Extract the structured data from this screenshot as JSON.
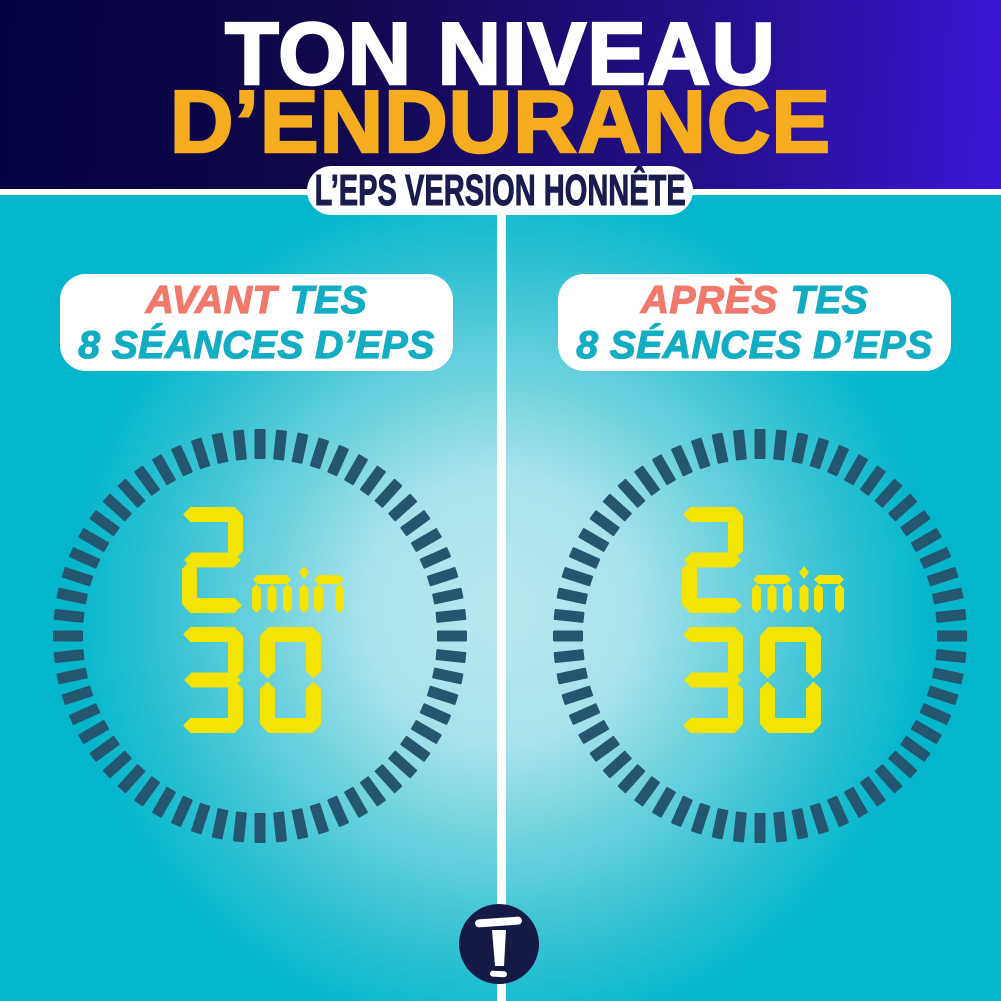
{
  "header": {
    "title_line1": "TON NIVEAU",
    "title_line2": "D’ENDURANCE",
    "pill": "L’EPS VERSION HONNÊTE"
  },
  "panels": [
    {
      "name": "avant",
      "accent": "AVANT",
      "rest": "TES",
      "line2": "8 SÉANCES D’EPS",
      "timer": {
        "minutes": "2",
        "unit": "min",
        "seconds": "30"
      }
    },
    {
      "name": "apres",
      "accent": "APRÈS",
      "rest": "TES",
      "line2": "8 SÉANCES D’EPS",
      "timer": {
        "minutes": "2",
        "unit": "min",
        "seconds": "30"
      }
    }
  ],
  "logo": {
    "icon": "topito-t-logo",
    "letter": "T"
  },
  "colors": {
    "header_gradient_start": "#050343",
    "header_gradient_end": "#3c16d6",
    "title_white": "#ffffff",
    "title_gold": "#f6ac1f",
    "pill_text_navy": "#1a1b4e",
    "accent_coral": "#f0796b",
    "text_teal": "#12adc3",
    "bg_teal": "#04b6cc",
    "bg_light_center": "#b9e9ef",
    "tick_dark": "#25566f",
    "digit_yellow": "#f4e403",
    "logo_navy": "#141a45"
  }
}
